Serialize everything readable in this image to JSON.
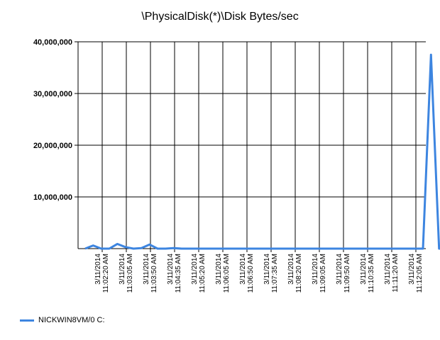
{
  "chart_data": {
    "type": "line",
    "title": "\\PhysicalDisk(*)\\Disk Bytes/sec",
    "xlabel": "",
    "ylabel": "",
    "ylim": [
      0,
      40000000
    ],
    "y_ticks": [
      {
        "value": 10000000,
        "label": "10,000,000"
      },
      {
        "value": 20000000,
        "label": "20,000,000"
      },
      {
        "value": 30000000,
        "label": "30,000,000"
      },
      {
        "value": 40000000,
        "label": "40,000,000"
      }
    ],
    "x_tick_labels": [
      [
        "3/11/2014",
        "11:02:20 AM"
      ],
      [
        "3/11/2014",
        "11:03:05 AM"
      ],
      [
        "3/11/2014",
        "11:03:50 AM"
      ],
      [
        "3/11/2014",
        "11:04:35 AM"
      ],
      [
        "3/11/2014",
        "11:05:20 AM"
      ],
      [
        "3/11/2014",
        "11:06:05 AM"
      ],
      [
        "3/11/2014",
        "11:06:50 AM"
      ],
      [
        "3/11/2014",
        "11:07:35 AM"
      ],
      [
        "3/11/2014",
        "11:08:20 AM"
      ],
      [
        "3/11/2014",
        "11:09:05 AM"
      ],
      [
        "3/11/2014",
        "11:09:50 AM"
      ],
      [
        "3/11/2014",
        "11:10:35 AM"
      ],
      [
        "3/11/2014",
        "11:11:20 AM"
      ],
      [
        "3/11/2014",
        "11:12:05 AM"
      ]
    ],
    "grid": true,
    "legend_position": "bottom-left",
    "series": [
      {
        "name": "NICKWIN8VM/0 C:",
        "color": "#3d85e0",
        "x_start": "11:01:35 AM",
        "x_step_seconds": 15,
        "values": [
          0,
          600000,
          0,
          0,
          900000,
          300000,
          0,
          100000,
          800000,
          0,
          0,
          100000,
          0,
          0,
          0,
          0,
          0,
          0,
          0,
          0,
          0,
          0,
          0,
          0,
          0,
          0,
          0,
          0,
          0,
          0,
          0,
          0,
          0,
          0,
          0,
          0,
          0,
          0,
          0,
          0,
          0,
          0,
          0,
          37500000,
          0,
          0,
          0
        ]
      }
    ]
  }
}
